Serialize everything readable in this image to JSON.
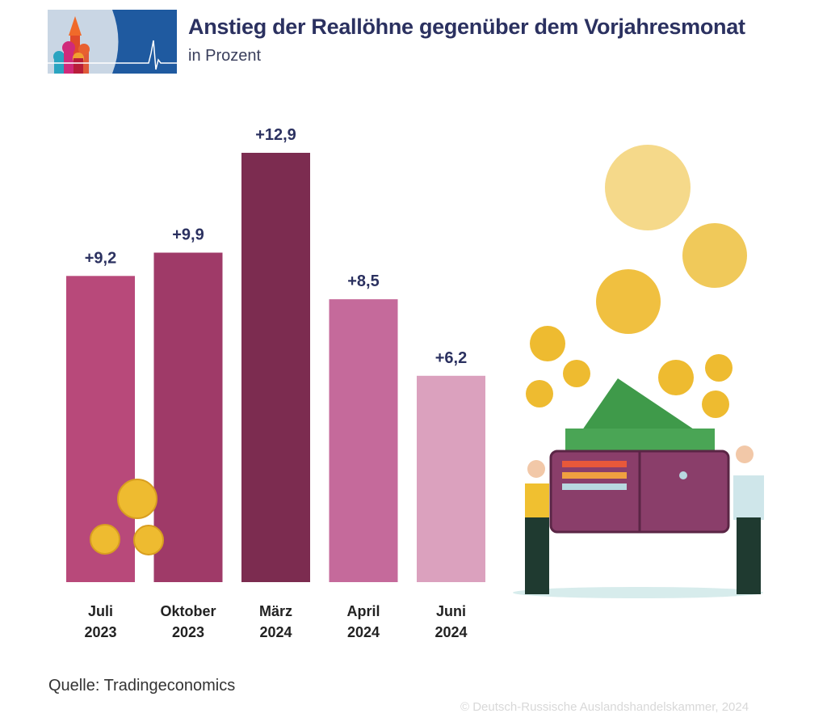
{
  "header": {
    "title": "Anstieg der Reallöhne gegenüber dem Vorjahresmonat",
    "subtitle": "in Prozent",
    "logo_icon": "moscow-domes-heartbeat-logo"
  },
  "chart_data": {
    "type": "bar",
    "title": "Anstieg der Reallöhne gegenüber dem Vorjahresmonat",
    "subtitle": "in Prozent",
    "categories": [
      [
        "Juli",
        "2023"
      ],
      [
        "Oktober",
        "2023"
      ],
      [
        "März",
        "2024"
      ],
      [
        "April",
        "2024"
      ],
      [
        "Juni",
        "2024"
      ]
    ],
    "values": [
      9.2,
      9.9,
      12.9,
      8.5,
      6.2
    ],
    "data_labels": [
      "+9,2",
      "+9,9",
      "+12,9",
      "+8,5",
      "+6,2"
    ],
    "colors": [
      "#b8497a",
      "#9f3a68",
      "#7c2c50",
      "#c56a9b",
      "#dba1be"
    ],
    "ylim": [
      0,
      12.9
    ],
    "grid": false,
    "label_color": "#2b3160"
  },
  "footer": {
    "source": "Quelle: Tradingeconomics",
    "copyright": "© Deutsch-Russische Auslandshandelskammer, 2024"
  },
  "illustration": {
    "icon": "wallet-coins-people-illustration"
  }
}
